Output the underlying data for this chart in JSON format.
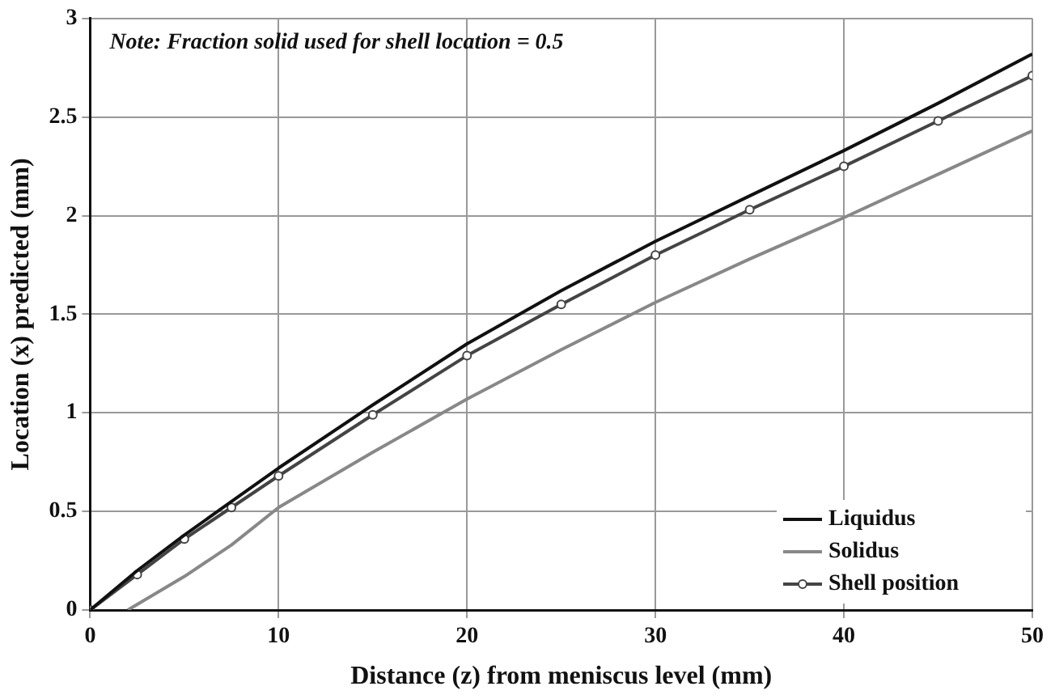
{
  "chart_data": {
    "type": "line",
    "xlabel": "Distance (z) from meniscus level (mm)",
    "ylabel": "Location (x) predicted (mm)",
    "annotations": [
      "Note: Fraction solid used for shell location = 0.5"
    ],
    "xlim": [
      0,
      50
    ],
    "xticks": [
      0,
      10,
      20,
      30,
      40,
      50
    ],
    "ylim": [
      0,
      3
    ],
    "yticks": [
      0,
      0.5,
      1,
      1.5,
      2,
      2.5,
      3
    ],
    "grid": true,
    "legend": "bottom right",
    "series": [
      {
        "name": "Liquidus",
        "color": "#111111",
        "marker": "none",
        "x": [
          0,
          2.5,
          5,
          7.5,
          10,
          15,
          20,
          25,
          30,
          35,
          40,
          45,
          50
        ],
        "values": [
          0,
          0.2,
          0.38,
          0.55,
          0.72,
          1.04,
          1.35,
          1.62,
          1.87,
          2.1,
          2.33,
          2.57,
          2.82
        ]
      },
      {
        "name": "Solidus",
        "color": "#888888",
        "marker": "none",
        "x": [
          2,
          5,
          7.5,
          10,
          15,
          20,
          25,
          30,
          35,
          40,
          45,
          50
        ],
        "values": [
          0,
          0.17,
          0.33,
          0.52,
          0.8,
          1.07,
          1.32,
          1.56,
          1.78,
          1.99,
          2.21,
          2.43
        ]
      },
      {
        "name": "Shell position",
        "color": "#444444",
        "marker": "circle",
        "x": [
          0,
          2.5,
          5,
          7.5,
          10,
          15,
          20,
          25,
          30,
          35,
          40,
          45,
          50
        ],
        "values": [
          0,
          0.18,
          0.36,
          0.52,
          0.68,
          0.99,
          1.29,
          1.55,
          1.8,
          2.03,
          2.25,
          2.48,
          2.71
        ]
      }
    ]
  }
}
